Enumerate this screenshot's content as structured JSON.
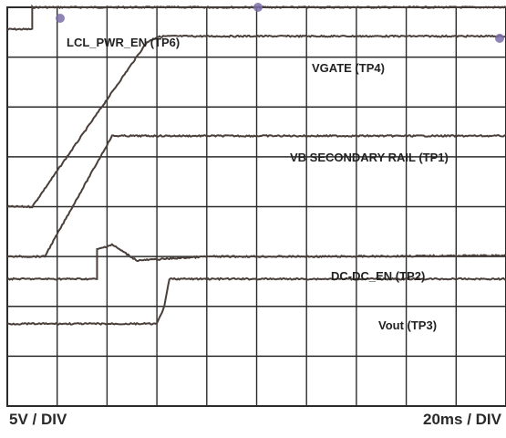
{
  "chart_data": {
    "type": "line",
    "title": "",
    "vertical_scale": "5V / DIV",
    "horizontal_scale": "20ms / DIV",
    "x_unit": "ms",
    "xlim": [
      0,
      200
    ],
    "divisions": {
      "horizontal": 10,
      "vertical": 8
    },
    "grid": true,
    "series": [
      {
        "name": "LCL_PWR_EN (TP6)",
        "points": [
          [
            0,
            7.56
          ],
          [
            10,
            7.56
          ],
          [
            10,
            8.0
          ],
          [
            200,
            8.0
          ]
        ]
      },
      {
        "name": "VGATE (TP4)",
        "points": [
          [
            0,
            4.0
          ],
          [
            10,
            4.0
          ],
          [
            56,
            7.3
          ],
          [
            58,
            7.35
          ],
          [
            60,
            7.4
          ],
          [
            63,
            7.42
          ],
          [
            200,
            7.42
          ]
        ]
      },
      {
        "name": "VB SECONDARY RAIL (TP1)",
        "points": [
          [
            0,
            3.0
          ],
          [
            15,
            3.0
          ],
          [
            42,
            5.42
          ],
          [
            200,
            5.42
          ]
        ]
      },
      {
        "name": "DC-DC_EN (TP2)",
        "points": [
          [
            0,
            2.55
          ],
          [
            36,
            2.55
          ],
          [
            36,
            3.14
          ],
          [
            42,
            3.24
          ],
          [
            52,
            2.92
          ],
          [
            80,
            3.0
          ],
          [
            130,
            3.0
          ],
          [
            200,
            3.02
          ]
        ]
      },
      {
        "name": "Vout (TP3)",
        "points": [
          [
            0,
            1.65
          ],
          [
            60,
            1.65
          ],
          [
            63,
            2.0
          ],
          [
            65,
            2.55
          ],
          [
            200,
            2.55
          ]
        ]
      }
    ],
    "labels": {
      "tp6": "LCL_PWR_EN (TP6)",
      "tp4": "VGATE (TP4)",
      "tp1": "VB SECONDARY RAIL (TP1)",
      "tp2": "DC-DC_EN (TP2)",
      "tp3": "Vout (TP3)"
    },
    "colors": {
      "trace": "#4a3f3a",
      "grid": "#2b2b2b",
      "background": "#ffffff"
    }
  }
}
